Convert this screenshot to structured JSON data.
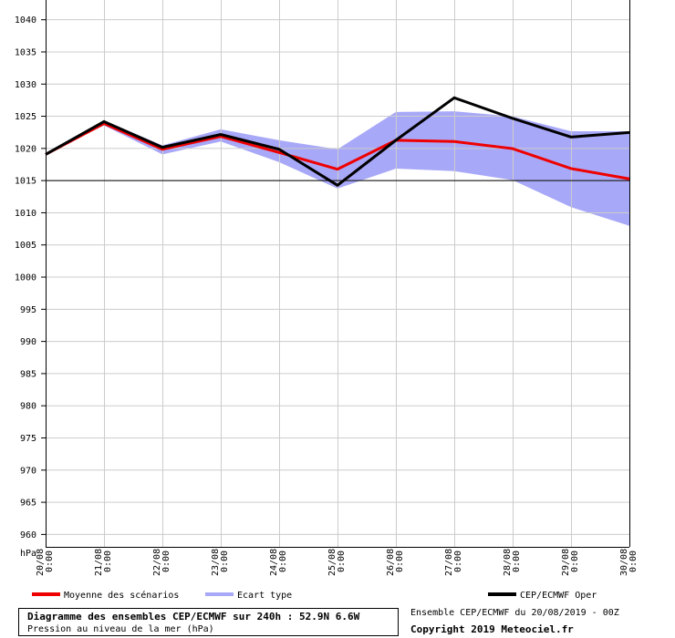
{
  "chart_data": {
    "type": "line",
    "ylabel": "hPa",
    "ylim": [
      958,
      1043
    ],
    "yticks": [
      960,
      965,
      970,
      975,
      980,
      985,
      990,
      995,
      1000,
      1005,
      1010,
      1015,
      1020,
      1025,
      1030,
      1035,
      1040
    ],
    "reference_line": 1015,
    "x": [
      "20/08 0:00",
      "21/08 0:00",
      "22/08 0:00",
      "23/08 0:00",
      "24/08 0:00",
      "25/08 0:00",
      "26/08 0:00",
      "27/08 0:00",
      "28/08 0:00",
      "29/08 0:00",
      "30/08 0:00"
    ],
    "x_dates": [
      "20/08",
      "21/08",
      "22/08",
      "23/08",
      "24/08",
      "25/08",
      "26/08",
      "27/08",
      "28/08",
      "29/08",
      "30/08"
    ],
    "x_times": [
      "0:00",
      "0:00",
      "0:00",
      "0:00",
      "0:00",
      "0:00",
      "0:00",
      "0:00",
      "0:00",
      "0:00",
      "0:00"
    ],
    "grid": true,
    "legend_placement": "bottom",
    "series": [
      {
        "name": "Moyenne des scénarios",
        "color": "#ee0000",
        "values": [
          1019,
          1023.8,
          1019.8,
          1021.8,
          1019.3,
          1016.7,
          1021.2,
          1021,
          1019.9,
          1016.8,
          1015.2
        ]
      },
      {
        "name": "Ecart type",
        "color": "#a8a8f8",
        "type": "band",
        "upper": [
          1019,
          1024.3,
          1020.4,
          1022.9,
          1021.2,
          1019.8,
          1025.6,
          1025.7,
          1024.9,
          1022.6,
          1022.6
        ],
        "lower": [
          1019,
          1023.5,
          1019.0,
          1021.0,
          1017.8,
          1013.7,
          1016.8,
          1016.4,
          1015.0,
          1010.8,
          1007.9
        ]
      },
      {
        "name": "CEP/ECMWF Oper",
        "color": "#000000",
        "values": [
          1019,
          1024.1,
          1020.1,
          1022.1,
          1019.8,
          1014.2,
          1021.2,
          1027.8,
          1024.6,
          1021.7,
          1022.4
        ]
      }
    ]
  },
  "footer": {
    "title": "Diagramme des ensembles CEP/ECMWF sur 240h : 52.9N 6.6W",
    "subtitle": "Pression au niveau de la mer (hPa)",
    "run_info": "Ensemble CEP/ECMWF du 20/08/2019 - 00Z",
    "copyright": "Copyright 2019 Meteociel.fr"
  }
}
